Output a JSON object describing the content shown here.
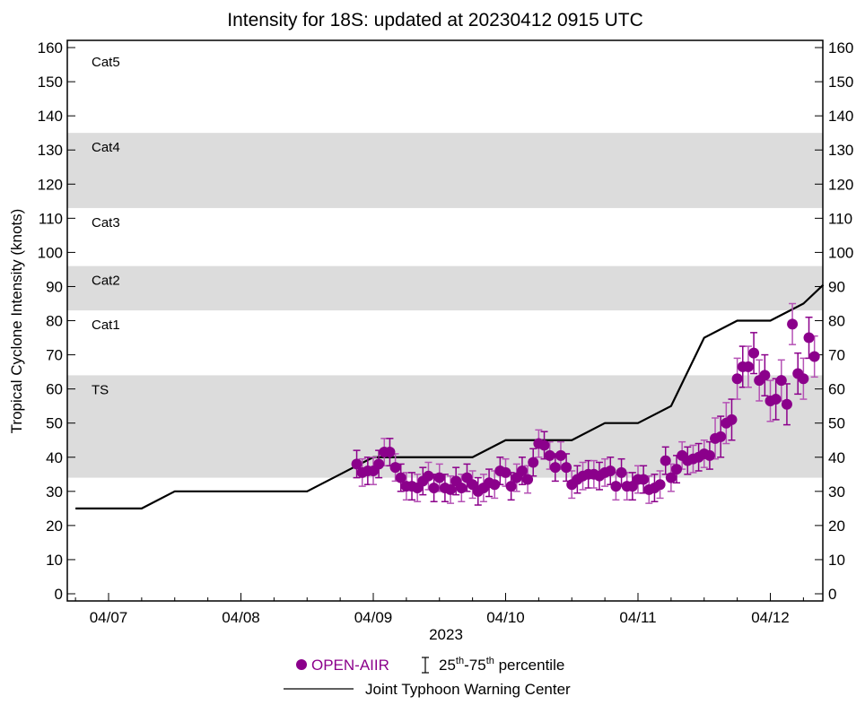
{
  "chart_data": {
    "type": "scatter",
    "title": "Intensity for 18S: updated at 20230412 0915 UTC",
    "ylabel": "Tropical Cyclone Intensity (knots)",
    "xlabel": "2023",
    "ylim": [
      0,
      160
    ],
    "yticks": [
      0,
      10,
      20,
      30,
      40,
      50,
      60,
      70,
      80,
      90,
      100,
      110,
      120,
      130,
      140,
      150,
      160
    ],
    "xlim_days_from_0407": [
      -0.31,
      5.4
    ],
    "xtick_labels": [
      "04/07",
      "04/08",
      "04/09",
      "04/10",
      "04/11",
      "04/12"
    ],
    "categories": [
      {
        "label": "TS",
        "min": 34,
        "max": 64,
        "shaded": true
      },
      {
        "label": "Cat1",
        "min": 64,
        "max": 83,
        "shaded": false
      },
      {
        "label": "Cat2",
        "min": 83,
        "max": 96,
        "shaded": true
      },
      {
        "label": "Cat3",
        "min": 96,
        "max": 113,
        "shaded": false
      },
      {
        "label": "Cat4",
        "min": 113,
        "max": 135,
        "shaded": true
      },
      {
        "label": "Cat5",
        "min": 135,
        "max": 160,
        "shaded": false
      }
    ],
    "series": [
      {
        "name": "OPEN-AIIR",
        "color": "#8b008b",
        "start_days_from_0407": 1.875,
        "interval_hours": 1,
        "values": [
          38,
          35.5,
          36,
          36,
          38,
          41.5,
          41.5,
          37,
          34,
          31.5,
          31.5,
          31,
          33,
          34.5,
          31,
          34,
          31,
          30.5,
          33,
          31,
          34,
          32,
          30,
          31,
          32.5,
          32,
          36,
          35.5,
          31.5,
          34,
          36,
          33.5,
          38.5,
          44,
          43.5,
          40.5,
          37,
          40.5,
          37,
          32,
          33.5,
          34.5,
          35,
          35,
          34.5,
          35.5,
          36,
          31.5,
          35.5,
          31.5,
          31.5,
          33.5,
          33.5,
          30.5,
          31,
          32,
          39,
          34,
          36.5,
          40.5,
          39,
          39.5,
          40,
          41,
          40.5,
          45.5,
          46,
          50,
          51,
          63,
          66.5,
          66.5,
          70.5,
          62.5,
          64,
          56.5,
          57,
          62.5,
          55.5,
          79,
          64.5,
          63,
          75,
          69.5
        ],
        "p25": [
          34,
          31.5,
          32,
          32,
          34,
          37.5,
          37.5,
          33,
          30,
          27.5,
          27.5,
          27,
          29,
          30.5,
          27,
          30,
          27,
          26.5,
          29,
          27,
          30,
          28,
          26,
          27,
          28.5,
          28,
          32,
          31.5,
          27.5,
          30,
          32,
          29.5,
          34.5,
          40,
          39.5,
          36.5,
          33,
          36.5,
          33,
          28,
          29.5,
          30.5,
          31,
          31,
          30.5,
          31.5,
          32,
          27.5,
          31.5,
          27.5,
          27.5,
          29.5,
          29.5,
          26.5,
          27,
          28,
          35,
          30,
          32.5,
          36.5,
          35,
          35.5,
          36,
          37,
          36.5,
          39.5,
          40,
          44,
          45,
          57,
          60.5,
          60.5,
          64.5,
          56.5,
          58,
          50.5,
          51,
          56.5,
          49.5,
          73,
          58.5,
          57,
          69,
          63.5
        ],
        "p75": [
          42,
          39.5,
          40,
          40,
          42,
          45.5,
          45.5,
          41,
          38,
          35.5,
          35.5,
          35,
          37,
          38.5,
          35,
          38,
          35,
          34.5,
          37,
          35,
          38,
          36,
          34,
          35,
          36.5,
          36,
          40,
          39.5,
          35.5,
          38,
          40,
          37.5,
          42.5,
          48,
          47.5,
          44.5,
          41,
          44.5,
          41,
          36,
          37.5,
          38.5,
          39,
          39,
          38.5,
          39.5,
          40,
          35.5,
          39.5,
          35.5,
          35.5,
          37.5,
          37.5,
          34.5,
          35,
          36,
          43,
          38,
          40.5,
          44.5,
          43,
          43.5,
          44,
          45,
          44.5,
          51.5,
          52,
          56,
          57,
          69,
          72.5,
          72.5,
          76.5,
          68.5,
          70,
          62.5,
          63,
          68.5,
          61.5,
          85,
          70.5,
          69,
          81,
          75.5
        ]
      },
      {
        "name": "Joint Typhoon Warning Center",
        "color": "#000000",
        "x_days_from_0407": [
          -0.25,
          0.25,
          0.5,
          1.5,
          2.0,
          2.75,
          3.0,
          3.5,
          3.75,
          4.0,
          4.25,
          4.5,
          4.75,
          5.0,
          5.25,
          5.4
        ],
        "values": [
          25,
          25,
          30,
          30,
          40,
          40,
          45,
          45,
          50,
          50,
          55,
          75,
          80,
          80,
          85,
          90.5
        ]
      }
    ],
    "legend": {
      "placement": "bottom",
      "marker_label": "OPEN-AIIR",
      "percentile_label_pre": "25",
      "percentile_sup1": "th",
      "percentile_mid": "-75",
      "percentile_sup2": "th",
      "percentile_post": " percentile",
      "line_label": "Joint Typhoon Warning Center"
    }
  }
}
